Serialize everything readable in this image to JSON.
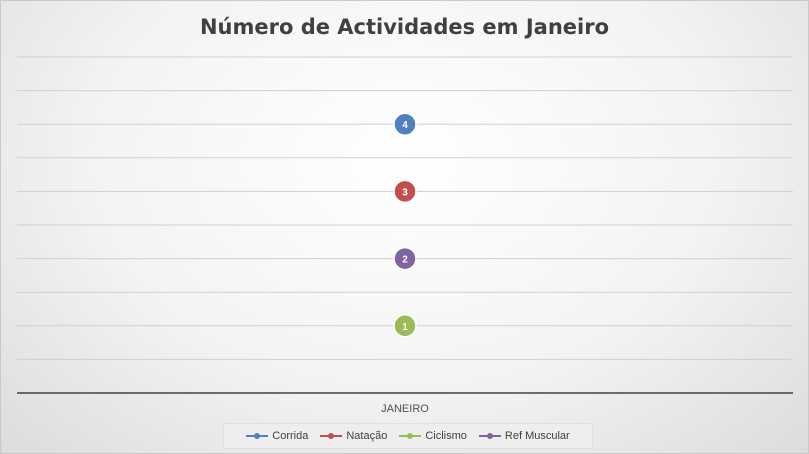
{
  "chart_data": {
    "type": "line",
    "title": "Número de Actividades em Janeiro",
    "categories": [
      "JANEIRO"
    ],
    "ylim": [
      0,
      5
    ],
    "grid": true,
    "legend_position": "bottom",
    "series": [
      {
        "name": "Corrida",
        "values": [
          4
        ],
        "color": "#4f81bd"
      },
      {
        "name": "Natação",
        "values": [
          3
        ],
        "color": "#c0504d"
      },
      {
        "name": "Ciclismo",
        "values": [
          1
        ],
        "color": "#9bbb59"
      },
      {
        "name": "Ref Muscular",
        "values": [
          2
        ],
        "color": "#8064a2"
      }
    ]
  }
}
